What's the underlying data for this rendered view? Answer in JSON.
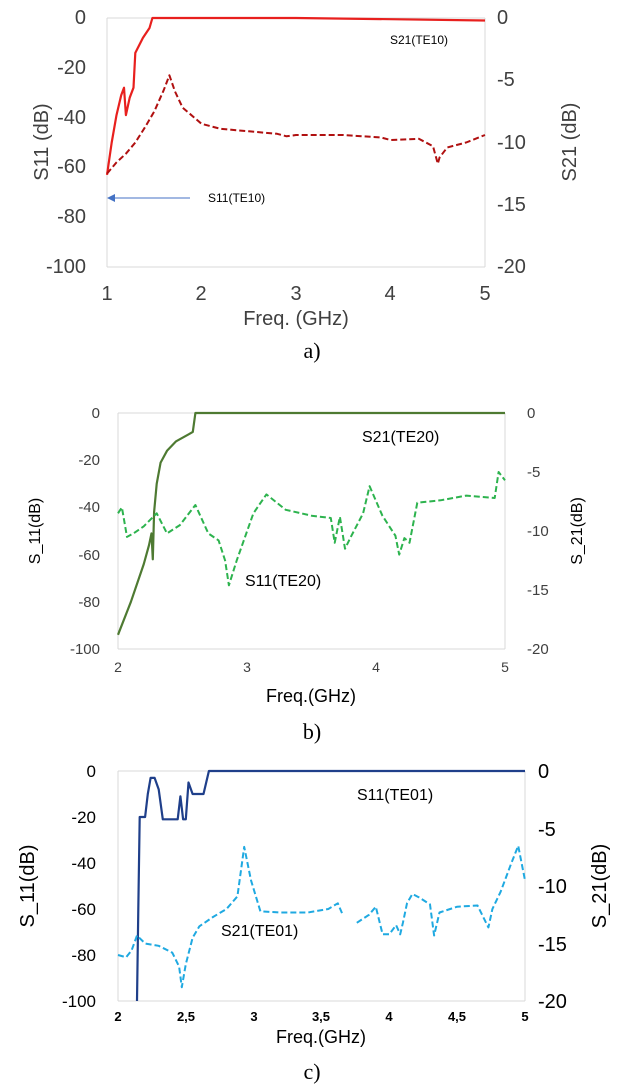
{
  "chart_data": [
    {
      "type": "line",
      "caption": "a)",
      "xlabel": "Freq. (GHz)",
      "ylabel_left": "S11 (dB)",
      "ylabel_right": "S21 (dB)",
      "xlim": [
        1,
        5
      ],
      "ylim_left": [
        -100,
        0
      ],
      "ylim_right": [
        -20,
        0
      ],
      "x_ticks": [
        "1",
        "2",
        "3",
        "4",
        "5"
      ],
      "y_ticks_left": [
        "0",
        "-20",
        "-40",
        "-60",
        "-80",
        "-100"
      ],
      "y_ticks_right": [
        "0",
        "-5",
        "-10",
        "-15",
        "-20"
      ],
      "series": [
        {
          "name": "S21(TE10)",
          "axis": "left",
          "style": "solid",
          "color": "#e8201e",
          "x": [
            1.0,
            1.05,
            1.1,
            1.15,
            1.18,
            1.2,
            1.24,
            1.28,
            1.3,
            1.38,
            1.45,
            1.48,
            1.6,
            2.0,
            3.0,
            4.0,
            5.0
          ],
          "y": [
            -63,
            -50,
            -39,
            -31,
            -28,
            -39,
            -32,
            -28,
            -14,
            -8,
            -4,
            0,
            0,
            0,
            0,
            -0.5,
            -1
          ]
        },
        {
          "name": "S11(TE10)",
          "axis": "right",
          "style": "dashed",
          "color": "#b01010",
          "x": [
            1.0,
            1.1,
            1.2,
            1.3,
            1.4,
            1.5,
            1.6,
            1.66,
            1.72,
            1.8,
            2.0,
            2.2,
            2.5,
            2.8,
            2.9,
            3.0,
            3.5,
            3.9,
            4.0,
            4.3,
            4.45,
            4.5,
            4.52,
            4.6,
            4.8,
            5.0
          ],
          "y": [
            -12.5,
            -11.6,
            -10.9,
            -10.0,
            -8.8,
            -7.5,
            -5.8,
            -4.6,
            -5.9,
            -7.2,
            -8.5,
            -8.9,
            -9.1,
            -9.3,
            -9.5,
            -9.4,
            -9.4,
            -9.6,
            -9.8,
            -9.7,
            -10.3,
            -11.7,
            -11.2,
            -10.4,
            -10.0,
            -9.4
          ]
        }
      ],
      "annotations": [
        "S21(TE10)",
        "S11(TE10)"
      ]
    },
    {
      "type": "line",
      "caption": "b)",
      "xlabel": "Freq.(GHz)",
      "ylabel_left": "S_11(dB)",
      "ylabel_right": "S_21(dB)",
      "xlim": [
        2,
        5
      ],
      "ylim_left": [
        -100,
        0
      ],
      "ylim_right": [
        -20,
        0
      ],
      "x_ticks": [
        "2",
        "3",
        "4",
        "5"
      ],
      "y_ticks_left": [
        "0",
        "-20",
        "-40",
        "-60",
        "-80",
        "-100"
      ],
      "y_ticks_right": [
        "0",
        "-5",
        "-10",
        "-15",
        "-20"
      ],
      "series": [
        {
          "name": "S21(TE20)",
          "axis": "left",
          "style": "solid",
          "color": "#4e7a32",
          "x": [
            2.0,
            2.1,
            2.2,
            2.24,
            2.26,
            2.27,
            2.28,
            2.3,
            2.33,
            2.38,
            2.45,
            2.55,
            2.58,
            2.6,
            3.0,
            4.0,
            5.0
          ],
          "y": [
            -94,
            -80,
            -64,
            -56,
            -51,
            -62,
            -42,
            -30,
            -21,
            -16,
            -12,
            -9,
            -8,
            0,
            0,
            0,
            0
          ]
        },
        {
          "name": "S11(TE20)",
          "axis": "right",
          "style": "dashed",
          "color": "#2db34e",
          "x": [
            2.0,
            2.03,
            2.07,
            2.12,
            2.2,
            2.3,
            2.38,
            2.48,
            2.6,
            2.7,
            2.78,
            2.83,
            2.86,
            2.92,
            3.05,
            3.15,
            3.3,
            3.5,
            3.65,
            3.68,
            3.72,
            3.76,
            3.8,
            3.9,
            3.95,
            4.05,
            4.15,
            4.18,
            4.22,
            4.26,
            4.32,
            4.5,
            4.7,
            4.92,
            4.95,
            5.0
          ],
          "y": [
            -8.5,
            -8.0,
            -10.5,
            -10.2,
            -9.6,
            -8.5,
            -10.2,
            -9.5,
            -7.8,
            -10.2,
            -10.8,
            -12.5,
            -14.6,
            -12.5,
            -8.5,
            -6.9,
            -8.2,
            -8.7,
            -8.9,
            -11.0,
            -8.8,
            -11.5,
            -10.6,
            -8.5,
            -6.2,
            -8.7,
            -10.4,
            -12.0,
            -10.6,
            -11.0,
            -7.6,
            -7.4,
            -7.0,
            -7.2,
            -5.0,
            -5.7
          ]
        }
      ],
      "annotations": [
        "S21(TE20)",
        "S11(TE20)"
      ]
    },
    {
      "type": "line",
      "caption": "c)",
      "xlabel": "Freq.(GHz)",
      "ylabel_left": "S_11(dB)",
      "ylabel_right": "S_21(dB)",
      "xlim": [
        2,
        5
      ],
      "ylim_left": [
        -100,
        0
      ],
      "ylim_right": [
        -20,
        0
      ],
      "x_ticks": [
        "2",
        "2,5",
        "3",
        "3,5",
        "4",
        "4,5",
        "5"
      ],
      "y_ticks_left": [
        "0",
        "-20",
        "-40",
        "-60",
        "-80",
        "-100"
      ],
      "y_ticks_right": [
        "0",
        "-5",
        "-10",
        "-15",
        "-20"
      ],
      "series": [
        {
          "name": "S11(TE01)",
          "axis": "left",
          "style": "solid",
          "color": "#1f3f8a",
          "x": [
            2.14,
            2.15,
            2.16,
            2.18,
            2.2,
            2.22,
            2.24,
            2.27,
            2.3,
            2.33,
            2.36,
            2.4,
            2.44,
            2.46,
            2.48,
            2.5,
            2.52,
            2.55,
            2.6,
            2.63,
            2.65,
            2.67,
            3.0,
            4.0,
            5.0
          ],
          "y": [
            -100,
            -60,
            -20,
            -20,
            -20,
            -10,
            -3,
            -3,
            -8,
            -21,
            -21,
            -21,
            -21,
            -11,
            -21,
            -21,
            -5,
            -10,
            -10,
            -10,
            -5,
            0,
            0,
            0,
            0
          ]
        },
        {
          "name": "S21(TE01)",
          "axis": "right",
          "style": "dashed",
          "color": "#1fa9e1",
          "x": [
            2.0,
            2.06,
            2.1,
            2.14,
            2.2,
            2.3,
            2.4,
            2.45,
            2.47,
            2.5,
            2.55,
            2.6,
            2.7,
            2.8,
            2.88,
            2.93,
            2.98,
            3.05,
            3.2,
            3.4,
            3.55,
            3.62,
            3.66,
            null,
            3.76,
            3.85,
            3.9,
            3.95,
            4.0,
            4.05,
            4.08,
            4.1,
            4.13,
            4.17,
            4.22,
            4.3,
            4.33,
            4.37,
            4.5,
            4.65,
            4.73,
            4.76,
            4.82,
            4.9,
            4.95,
            5.0
          ],
          "y": [
            -16.0,
            -16.2,
            -15.6,
            -14.3,
            -15.0,
            -15.2,
            -15.8,
            -17.0,
            -18.8,
            -16.8,
            -14.5,
            -13.5,
            -12.7,
            -12.0,
            -10.9,
            -6.6,
            -9.5,
            -12.2,
            -12.3,
            -12.3,
            -12.0,
            -11.5,
            -12.6,
            null,
            -13.2,
            -12.5,
            -11.8,
            -14.2,
            -14.2,
            -13.4,
            -14.2,
            -13.2,
            -11.5,
            -10.7,
            -11.0,
            -11.6,
            -14.3,
            -12.3,
            -11.8,
            -11.7,
            -13.6,
            -12.0,
            -10.5,
            -8.0,
            -6.5,
            -9.5
          ]
        }
      ],
      "annotations": [
        "S11(TE01)",
        "S21(TE01)"
      ]
    }
  ]
}
